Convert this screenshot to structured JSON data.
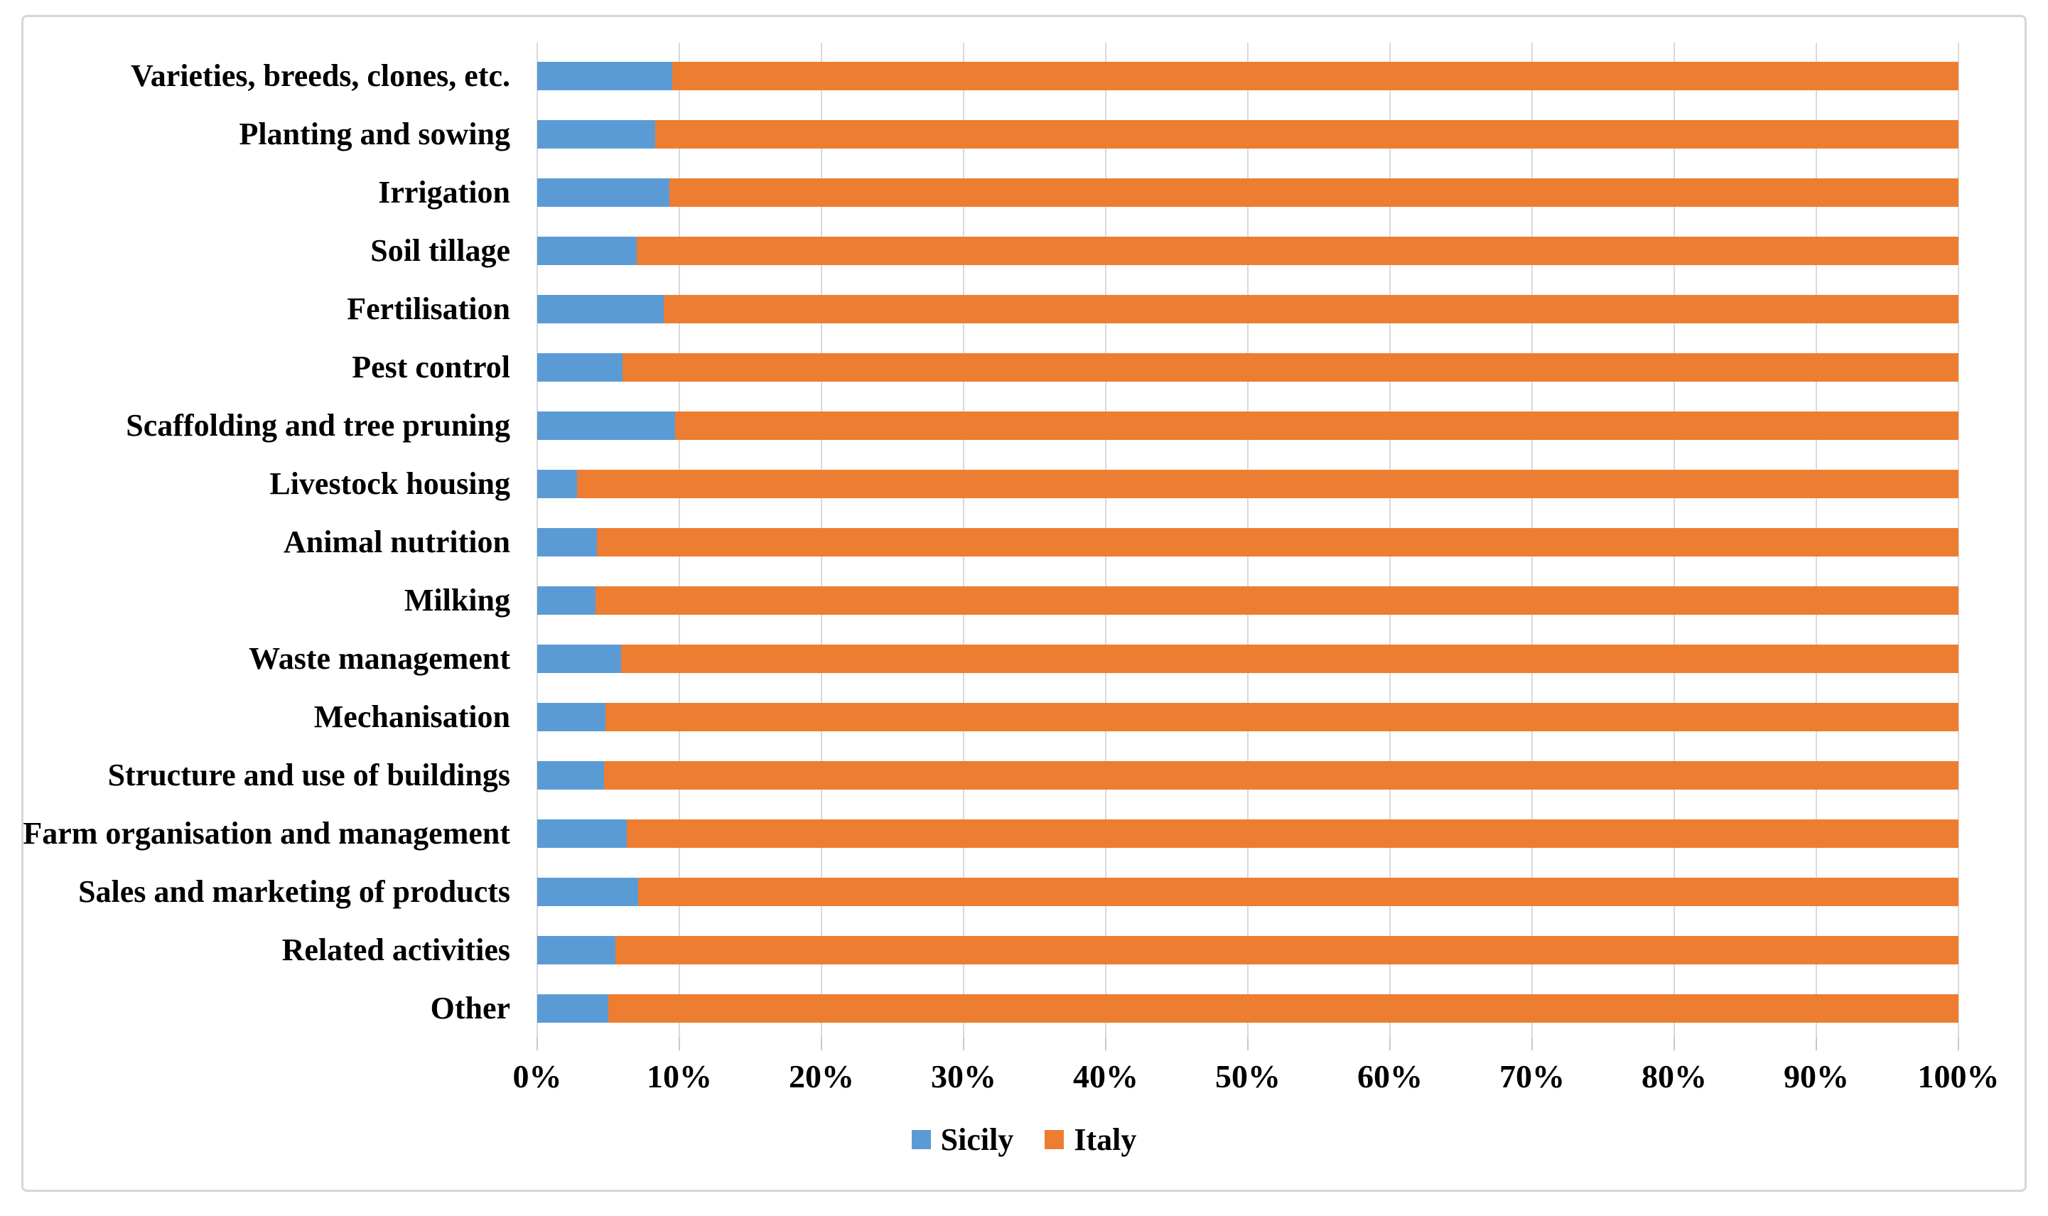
{
  "chart_data": {
    "type": "bar",
    "orientation": "horizontal",
    "stacked": true,
    "percent_stacked": true,
    "title": "",
    "xlabel": "",
    "ylabel": "",
    "grid": "vertical",
    "legend_position": "bottom-center",
    "xlim": [
      0,
      100
    ],
    "x_ticks": [
      0,
      10,
      20,
      30,
      40,
      50,
      60,
      70,
      80,
      90,
      100
    ],
    "x_tick_labels": [
      "0%",
      "10%",
      "20%",
      "30%",
      "40%",
      "50%",
      "60%",
      "70%",
      "80%",
      "90%",
      "100%"
    ],
    "categories": [
      "Varieties, breeds, clones, etc.",
      "Planting and sowing",
      "Irrigation",
      "Soil tillage",
      "Fertilisation",
      "Pest control",
      "Scaffolding and tree pruning",
      "Livestock housing",
      "Animal nutrition",
      "Milking",
      "Waste management",
      "Mechanisation",
      "Structure and use of buildings",
      "Farm organisation and management",
      "Sales and marketing of products",
      "Related activities",
      "Other"
    ],
    "series": [
      {
        "name": "Sicily",
        "color": "#5B9BD5",
        "values": [
          9.5,
          8.3,
          9.3,
          7.0,
          8.9,
          6.0,
          9.7,
          2.8,
          4.2,
          4.1,
          5.9,
          4.8,
          4.7,
          6.3,
          7.1,
          5.5,
          5.0
        ]
      },
      {
        "name": "Italy",
        "color": "#ED7D31",
        "values": [
          90.5,
          91.7,
          90.7,
          93.0,
          91.1,
          94.0,
          90.3,
          97.2,
          95.8,
          95.9,
          94.1,
          95.2,
          95.3,
          93.7,
          92.9,
          94.5,
          95.0
        ]
      }
    ],
    "gridline_color": "#D9D9D9",
    "frame_border_color": "#D6D6D6"
  }
}
